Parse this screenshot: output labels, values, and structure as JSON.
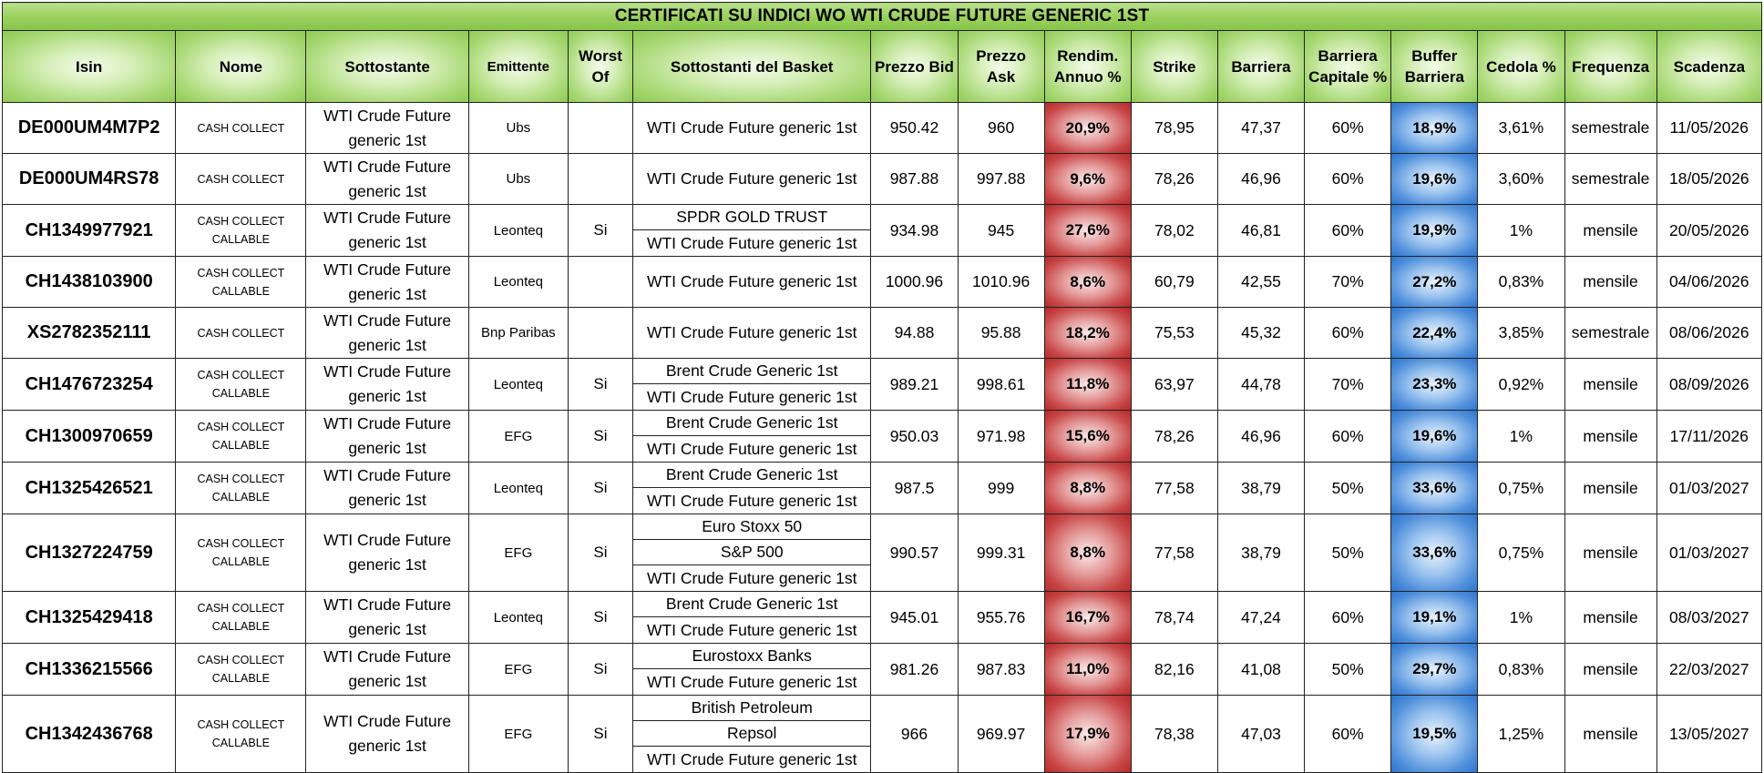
{
  "title": "CERTIFICATI SU INDICI WO WTI CRUDE FUTURE GENERIC 1ST",
  "headers": {
    "isin": "Isin",
    "nome": "Nome",
    "sottostante": "Sottostante",
    "emittente": "Emittente",
    "worst_of_1": "Worst",
    "worst_of_2": "Of",
    "basket": "Sottostanti del Basket",
    "bid": "Prezzo Bid",
    "ask_1": "Prezzo",
    "ask_2": "Ask",
    "rendimento_1": "Rendim.",
    "rendimento_2": "Annuo %",
    "strike": "Strike",
    "barriera": "Barriera",
    "barriera_capitale_1": "Barriera",
    "barriera_capitale_2": "Capitale %",
    "buffer_1": "Buffer",
    "buffer_2": "Barriera",
    "cedola": "Cedola %",
    "frequenza": "Frequenza",
    "scadenza": "Scadenza"
  },
  "colors": {
    "header_green": "#9bd15e",
    "rendimento_red": "#c94848",
    "buffer_blue": "#4f8fdb"
  },
  "rows": [
    {
      "isin": "DE000UM4M7P2",
      "nome1": "CASH COLLECT",
      "nome2": "",
      "sott1": "WTI Crude Future",
      "sott2": "generic 1st",
      "emittente": "Ubs",
      "wo": "",
      "basket": [
        "WTI Crude Future generic 1st"
      ],
      "bid": "950.42",
      "ask": "960",
      "rendimento": "20,9%",
      "strike": "78,95",
      "barriera": "47,37",
      "barriera_capitale": "60%",
      "buffer": "18,9%",
      "cedola": "3,61%",
      "frequenza": "semestrale",
      "scadenza": "11/05/2026"
    },
    {
      "isin": "DE000UM4RS78",
      "nome1": "CASH COLLECT",
      "nome2": "",
      "sott1": "WTI Crude Future",
      "sott2": "generic 1st",
      "emittente": "Ubs",
      "wo": "",
      "basket": [
        "WTI Crude Future generic 1st"
      ],
      "bid": "987.88",
      "ask": "997.88",
      "rendimento": "9,6%",
      "strike": "78,26",
      "barriera": "46,96",
      "barriera_capitale": "60%",
      "buffer": "19,6%",
      "cedola": "3,60%",
      "frequenza": "semestrale",
      "scadenza": "18/05/2026"
    },
    {
      "isin": "CH1349977921",
      "nome1": "CASH COLLECT",
      "nome2": "CALLABLE",
      "sott1": "WTI Crude Future",
      "sott2": "generic 1st",
      "emittente": "Leonteq",
      "wo": "Si",
      "basket": [
        "SPDR GOLD TRUST",
        "WTI Crude Future generic 1st"
      ],
      "bid": "934.98",
      "ask": "945",
      "rendimento": "27,6%",
      "strike": "78,02",
      "barriera": "46,81",
      "barriera_capitale": "60%",
      "buffer": "19,9%",
      "cedola": "1%",
      "frequenza": "mensile",
      "scadenza": "20/05/2026"
    },
    {
      "isin": "CH1438103900",
      "nome1": "CASH COLLECT",
      "nome2": "CALLABLE",
      "sott1": "WTI Crude Future",
      "sott2": "generic 1st",
      "emittente": "Leonteq",
      "wo": "",
      "basket": [
        "WTI Crude Future generic 1st"
      ],
      "bid": "1000.96",
      "ask": "1010.96",
      "rendimento": "8,6%",
      "strike": "60,79",
      "barriera": "42,55",
      "barriera_capitale": "70%",
      "buffer": "27,2%",
      "cedola": "0,83%",
      "frequenza": "mensile",
      "scadenza": "04/06/2026"
    },
    {
      "isin": "XS2782352111",
      "nome1": "CASH COLLECT",
      "nome2": "",
      "sott1": "WTI Crude Future",
      "sott2": "generic 1st",
      "emittente": "Bnp Paribas",
      "wo": "",
      "basket": [
        "WTI Crude Future generic 1st"
      ],
      "bid": "94.88",
      "ask": "95.88",
      "rendimento": "18,2%",
      "strike": "75,53",
      "barriera": "45,32",
      "barriera_capitale": "60%",
      "buffer": "22,4%",
      "cedola": "3,85%",
      "frequenza": "semestrale",
      "scadenza": "08/06/2026"
    },
    {
      "isin": "CH1476723254",
      "nome1": "CASH COLLECT",
      "nome2": "CALLABLE",
      "sott1": "WTI Crude Future",
      "sott2": "generic 1st",
      "emittente": "Leonteq",
      "wo": "Si",
      "basket": [
        "Brent Crude Generic 1st",
        "WTI Crude Future generic 1st"
      ],
      "bid": "989.21",
      "ask": "998.61",
      "rendimento": "11,8%",
      "strike": "63,97",
      "barriera": "44,78",
      "barriera_capitale": "70%",
      "buffer": "23,3%",
      "cedola": "0,92%",
      "frequenza": "mensile",
      "scadenza": "08/09/2026"
    },
    {
      "isin": "CH1300970659",
      "nome1": "CASH COLLECT",
      "nome2": "CALLABLE",
      "sott1": "WTI Crude Future",
      "sott2": "generic 1st",
      "emittente": "EFG",
      "wo": "Si",
      "basket": [
        "Brent Crude Generic 1st",
        "WTI Crude Future generic 1st"
      ],
      "bid": "950.03",
      "ask": "971.98",
      "rendimento": "15,6%",
      "strike": "78,26",
      "barriera": "46,96",
      "barriera_capitale": "60%",
      "buffer": "19,6%",
      "cedola": "1%",
      "frequenza": "mensile",
      "scadenza": "17/11/2026"
    },
    {
      "isin": "CH1325426521",
      "nome1": "CASH COLLECT",
      "nome2": "CALLABLE",
      "sott1": "WTI Crude Future",
      "sott2": "generic 1st",
      "emittente": "Leonteq",
      "wo": "Si",
      "basket": [
        "Brent Crude Generic 1st",
        "WTI Crude Future generic 1st"
      ],
      "bid": "987.5",
      "ask": "999",
      "rendimento": "8,8%",
      "strike": "77,58",
      "barriera": "38,79",
      "barriera_capitale": "50%",
      "buffer": "33,6%",
      "cedola": "0,75%",
      "frequenza": "mensile",
      "scadenza": "01/03/2027"
    },
    {
      "isin": "CH1327224759",
      "nome1": "CASH COLLECT",
      "nome2": "CALLABLE",
      "sott1": "WTI Crude Future",
      "sott2": "generic 1st",
      "emittente": "EFG",
      "wo": "Si",
      "basket": [
        "Euro Stoxx 50",
        "S&P 500",
        "WTI Crude Future generic 1st"
      ],
      "bid": "990.57",
      "ask": "999.31",
      "rendimento": "8,8%",
      "strike": "77,58",
      "barriera": "38,79",
      "barriera_capitale": "50%",
      "buffer": "33,6%",
      "cedola": "0,75%",
      "frequenza": "mensile",
      "scadenza": "01/03/2027"
    },
    {
      "isin": "CH1325429418",
      "nome1": "CASH COLLECT",
      "nome2": "CALLABLE",
      "sott1": "WTI Crude Future",
      "sott2": "generic 1st",
      "emittente": "Leonteq",
      "wo": "Si",
      "basket": [
        "Brent Crude Generic 1st",
        "WTI Crude Future generic 1st"
      ],
      "bid": "945.01",
      "ask": "955.76",
      "rendimento": "16,7%",
      "strike": "78,74",
      "barriera": "47,24",
      "barriera_capitale": "60%",
      "buffer": "19,1%",
      "cedola": "1%",
      "frequenza": "mensile",
      "scadenza": "08/03/2027"
    },
    {
      "isin": "CH1336215566",
      "nome1": "CASH COLLECT",
      "nome2": "CALLABLE",
      "sott1": "WTI Crude Future",
      "sott2": "generic 1st",
      "emittente": "EFG",
      "wo": "Si",
      "basket": [
        "Eurostoxx Banks",
        "WTI Crude Future generic 1st"
      ],
      "bid": "981.26",
      "ask": "987.83",
      "rendimento": "11,0%",
      "strike": "82,16",
      "barriera": "41,08",
      "barriera_capitale": "50%",
      "buffer": "29,7%",
      "cedola": "0,83%",
      "frequenza": "mensile",
      "scadenza": "22/03/2027"
    },
    {
      "isin": "CH1342436768",
      "nome1": "CASH COLLECT",
      "nome2": "CALLABLE",
      "sott1": "WTI Crude Future",
      "sott2": "generic 1st",
      "emittente": "EFG",
      "wo": "Si",
      "basket": [
        "British Petroleum",
        "Repsol",
        "WTI Crude Future generic 1st"
      ],
      "bid": "966",
      "ask": "969.97",
      "rendimento": "17,9%",
      "strike": "78,38",
      "barriera": "47,03",
      "barriera_capitale": "60%",
      "buffer": "19,5%",
      "cedola": "1,25%",
      "frequenza": "mensile",
      "scadenza": "13/05/2027"
    }
  ]
}
